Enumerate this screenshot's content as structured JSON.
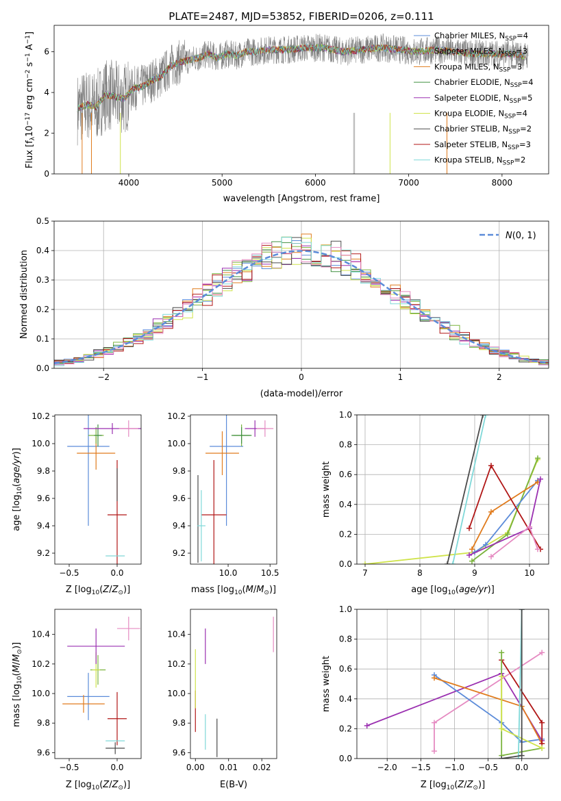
{
  "figure": {
    "title": "PLATE=2487, MJD=53852, FIBERID=0206, z=0.111",
    "palette": {
      "chabrier_miles": "#5b8bd9",
      "salpeter_miles": "#7ab33c",
      "kroupa_miles": "#e07b1c",
      "chabrier_elodie": "#3f8f3f",
      "salpeter_elodie": "#9a2fb0",
      "kroupa_elodie": "#cfe34a",
      "chabrier_stelib": "#4a4a4a",
      "salpeter_stelib": "#b01515",
      "kroupa_stelib": "#7fd8d8",
      "extra": "#e58ac1"
    }
  },
  "chart_data": [
    {
      "id": "spectrum",
      "type": "line",
      "xlabel": "wavelength [Angstrom, rest frame]",
      "ylabel": "Flux [f_λ10^-17 erg cm^-2 s^-1 A^-1]",
      "xlim": [
        3200,
        8500
      ],
      "ylim": [
        0,
        7.3
      ],
      "xticks": [
        4000,
        5000,
        6000,
        7000,
        8000
      ],
      "yticks": [
        0,
        2,
        4,
        6
      ],
      "legend": [
        {
          "label": "Chabrier MILES, N_SSP=4",
          "color": "#5b8bd9"
        },
        {
          "label": "Salpeter MILES, N_SSP=3",
          "color": "#7ab33c"
        },
        {
          "label": "Kroupa MILES, N_SSP=3",
          "color": "#e07b1c"
        },
        {
          "label": "Chabrier ELODIE, N_SSP=4",
          "color": "#3f8f3f"
        },
        {
          "label": "Salpeter ELODIE, N_SSP=5",
          "color": "#9a2fb0"
        },
        {
          "label": "Kroupa ELODIE, N_SSP=4",
          "color": "#cfe34a"
        },
        {
          "label": "Chabrier STELIB, N_SSP=2",
          "color": "#4a4a4a"
        },
        {
          "label": "Salpeter STELIB, N_SSP=3",
          "color": "#b01515"
        },
        {
          "label": "Kroupa STELIB, N_SSP=2",
          "color": "#7fd8d8"
        }
      ],
      "continuum": [
        [
          3450,
          3.2
        ],
        [
          3550,
          3.4
        ],
        [
          3650,
          3.3
        ],
        [
          3750,
          3.9
        ],
        [
          3850,
          3.8
        ],
        [
          3950,
          3.7
        ],
        [
          4050,
          4.2
        ],
        [
          4150,
          4.3
        ],
        [
          4250,
          4.6
        ],
        [
          4350,
          4.8
        ],
        [
          4450,
          5.3
        ],
        [
          4550,
          5.5
        ],
        [
          4650,
          5.6
        ],
        [
          4750,
          5.7
        ],
        [
          4850,
          5.9
        ],
        [
          4950,
          5.7
        ],
        [
          5050,
          5.9
        ],
        [
          5150,
          5.8
        ],
        [
          5250,
          6.0
        ],
        [
          5350,
          6.0
        ],
        [
          5500,
          6.1
        ],
        [
          5700,
          6.1
        ],
        [
          5900,
          6.2
        ],
        [
          6100,
          6.2
        ],
        [
          6300,
          6.0
        ],
        [
          6500,
          6.1
        ],
        [
          6700,
          6.2
        ],
        [
          6900,
          6.1
        ],
        [
          7100,
          6.0
        ],
        [
          7300,
          6.1
        ],
        [
          7500,
          6.0
        ],
        [
          7700,
          5.9
        ],
        [
          7900,
          5.9
        ],
        [
          8100,
          5.9
        ],
        [
          8250,
          5.8
        ]
      ]
    },
    {
      "id": "residuals",
      "type": "line",
      "xlabel": "(data-model)/error",
      "ylabel": "Normed distribution",
      "xlim": [
        -2.5,
        2.5
      ],
      "ylim": [
        0,
        0.5
      ],
      "xticks": [
        -2,
        -1,
        0,
        1,
        2
      ],
      "yticks": [
        0.0,
        0.1,
        0.2,
        0.3,
        0.4,
        0.5
      ],
      "grid": true,
      "legend": [
        {
          "label": "N(0,1)",
          "color": "#5b8bd9",
          "style": "dashed"
        }
      ],
      "gaussian": {
        "mean": 0,
        "sigma": 1
      }
    },
    {
      "id": "age_vs_Z",
      "type": "scatter",
      "xlabel": "Z [log10(Z/Z☉)]",
      "ylabel": "age [log10(age/yr)]",
      "xlim": [
        -0.65,
        0.25
      ],
      "ylim": [
        9.12,
        10.21
      ],
      "xticks": [
        -0.5,
        0.0
      ],
      "yticks": [
        9.2,
        9.4,
        9.6,
        9.8,
        10.0,
        10.2
      ],
      "points": [
        {
          "x": -0.3,
          "y": 9.98,
          "ex": 0.22,
          "ey": 0.58,
          "color": "#5b8bd9"
        },
        {
          "x": -0.22,
          "y": 9.93,
          "ex": 0.2,
          "ey": 0.12,
          "color": "#e07b1c"
        },
        {
          "x": -0.22,
          "y": 10.06,
          "ex": 0.08,
          "ey": 0.06,
          "color": "#7ab33c"
        },
        {
          "x": -0.2,
          "y": 10.06,
          "ex": 0.04,
          "ey": 0.08,
          "color": "#3f8f3f"
        },
        {
          "x": -0.05,
          "y": 10.11,
          "ex": 0.3,
          "ey": 0.04,
          "color": "#9a2fb0"
        },
        {
          "x": 0.12,
          "y": 10.11,
          "ex": 0.1,
          "ey": 0.06,
          "color": "#e58ac1"
        },
        {
          "x": 0.0,
          "y": 9.48,
          "ex": 0.1,
          "ey": 0.4,
          "color": "#b01515"
        },
        {
          "x": 0.0,
          "y": 9.7,
          "ex": 0.0,
          "ey": 0.12,
          "color": "#4a4a4a"
        },
        {
          "x": -0.02,
          "y": 9.18,
          "ex": 0.1,
          "ey": 0.0,
          "color": "#7fd8d8"
        }
      ]
    },
    {
      "id": "age_vs_mass",
      "type": "scatter",
      "xlabel": "mass [log10(M/M☉)]",
      "ylabel": "",
      "xlim": [
        9.55,
        10.58
      ],
      "ylim": [
        9.12,
        10.21
      ],
      "xticks": [
        10.0,
        10.5
      ],
      "yticks": [
        9.2,
        9.4,
        9.6,
        9.8,
        10.0,
        10.2
      ],
      "points": [
        {
          "x": 9.98,
          "y": 9.98,
          "ex": 0.2,
          "ey": 0.58,
          "color": "#5b8bd9"
        },
        {
          "x": 9.93,
          "y": 9.93,
          "ex": 0.2,
          "ey": 0.16,
          "color": "#e07b1c"
        },
        {
          "x": 10.16,
          "y": 10.06,
          "ex": 0.1,
          "ey": 0.08,
          "color": "#7ab33c"
        },
        {
          "x": 10.16,
          "y": 10.06,
          "ex": 0.12,
          "ey": 0.06,
          "color": "#3f8f3f"
        },
        {
          "x": 10.32,
          "y": 10.11,
          "ex": 0.12,
          "ey": 0.06,
          "color": "#9a2fb0"
        },
        {
          "x": 10.44,
          "y": 10.11,
          "ex": 0.1,
          "ey": 0.06,
          "color": "#e58ac1"
        },
        {
          "x": 9.83,
          "y": 9.48,
          "ex": 0.15,
          "ey": 0.4,
          "color": "#b01515"
        },
        {
          "x": 9.64,
          "y": 9.45,
          "ex": 0.0,
          "ey": 0.32,
          "color": "#4a4a4a"
        },
        {
          "x": 9.68,
          "y": 9.4,
          "ex": 0.05,
          "ey": 0.26,
          "color": "#7fd8d8"
        }
      ]
    },
    {
      "id": "massweight_vs_age",
      "type": "line",
      "xlabel": "age [log10(age/yr)]",
      "ylabel": "mass weight",
      "xlim": [
        6.85,
        10.35
      ],
      "ylim": [
        0,
        1
      ],
      "xticks": [
        7,
        8,
        9,
        10
      ],
      "yticks": [
        0.0,
        0.2,
        0.4,
        0.6,
        0.8,
        1.0
      ],
      "grid": true,
      "series": [
        {
          "color": "#cfe34a",
          "x": [
            7.0,
            9.0,
            9.6,
            10.15
          ],
          "y": [
            0.0,
            0.08,
            0.21,
            0.7
          ]
        },
        {
          "color": "#7fd8d8",
          "x": [
            8.6,
            9.2
          ],
          "y": [
            0.0,
            1.0
          ]
        },
        {
          "color": "#4a4a4a",
          "x": [
            8.5,
            9.15
          ],
          "y": [
            0.0,
            1.0
          ]
        },
        {
          "color": "#7ab33c",
          "x": [
            8.95,
            9.6,
            10.15
          ],
          "y": [
            0.02,
            0.2,
            0.71
          ]
        },
        {
          "color": "#5b8bd9",
          "x": [
            9.0,
            9.2,
            10.15
          ],
          "y": [
            0.08,
            0.13,
            0.56
          ]
        },
        {
          "color": "#e07b1c",
          "x": [
            8.95,
            9.3,
            10.15
          ],
          "y": [
            0.1,
            0.35,
            0.55
          ]
        },
        {
          "color": "#9a2fb0",
          "x": [
            8.9,
            10.0,
            10.2
          ],
          "y": [
            0.06,
            0.24,
            0.57
          ]
        },
        {
          "color": "#b01515",
          "x": [
            8.9,
            9.3,
            10.2
          ],
          "y": [
            0.24,
            0.66,
            0.1
          ]
        },
        {
          "color": "#e58ac1",
          "x": [
            9.3,
            10.0,
            10.15
          ],
          "y": [
            0.05,
            0.25,
            0.1
          ]
        }
      ]
    },
    {
      "id": "mass_vs_Z",
      "type": "scatter",
      "xlabel": "Z [log10(Z/Z☉)]",
      "ylabel": "mass [log10(M/M☉)]",
      "xlim": [
        -0.65,
        0.25
      ],
      "ylim": [
        9.56,
        10.57
      ],
      "xticks": [
        -0.5,
        0.0
      ],
      "yticks": [
        9.6,
        9.8,
        10.0,
        10.2,
        10.4
      ],
      "points": [
        {
          "x": -0.3,
          "y": 9.98,
          "ex": 0.22,
          "ey": 0.16,
          "color": "#5b8bd9"
        },
        {
          "x": -0.35,
          "y": 9.93,
          "ex": 0.22,
          "ey": 0.06,
          "color": "#e07b1c"
        },
        {
          "x": -0.2,
          "y": 10.16,
          "ex": 0.08,
          "ey": 0.1,
          "color": "#7ab33c"
        },
        {
          "x": -0.22,
          "y": 10.16,
          "ex": 0.04,
          "ey": 0.12,
          "color": "#cfe34a"
        },
        {
          "x": -0.22,
          "y": 10.32,
          "ex": 0.3,
          "ey": 0.12,
          "color": "#9a2fb0"
        },
        {
          "x": 0.12,
          "y": 10.44,
          "ex": 0.12,
          "ey": 0.08,
          "color": "#e58ac1"
        },
        {
          "x": 0.0,
          "y": 9.83,
          "ex": 0.1,
          "ey": 0.18,
          "color": "#b01515"
        },
        {
          "x": -0.02,
          "y": 9.63,
          "ex": 0.1,
          "ey": 0.04,
          "color": "#4a4a4a"
        },
        {
          "x": -0.02,
          "y": 9.68,
          "ex": 0.1,
          "ey": 0.0,
          "color": "#7fd8d8"
        }
      ]
    },
    {
      "id": "mass_vs_ebv",
      "type": "scatter",
      "xlabel": "E(B-V)",
      "ylabel": "",
      "xlim": [
        -0.0015,
        0.0245
      ],
      "ylim": [
        9.56,
        10.57
      ],
      "xticks": [
        0.0,
        0.01,
        0.02
      ],
      "yticks": [
        9.6,
        9.8,
        10.0,
        10.2,
        10.4
      ],
      "points": [
        {
          "x": 0.0,
          "y": 9.88,
          "ex": 0.0,
          "ey": 0.14,
          "color": "#b01515"
        },
        {
          "x": 0.0,
          "y": 10.1,
          "ex": 0.0,
          "ey": 0.2,
          "color": "#cfe34a"
        },
        {
          "x": 0.003,
          "y": 10.32,
          "ex": 0.0,
          "ey": 0.12,
          "color": "#9a2fb0"
        },
        {
          "x": 0.003,
          "y": 9.74,
          "ex": 0.0,
          "ey": 0.12,
          "color": "#7fd8d8"
        },
        {
          "x": 0.0065,
          "y": 9.7,
          "ex": 0.0,
          "ey": 0.13,
          "color": "#4a4a4a"
        },
        {
          "x": 0.0235,
          "y": 10.4,
          "ex": 0.0,
          "ey": 0.12,
          "color": "#e58ac1"
        }
      ]
    },
    {
      "id": "massweight_vs_Z",
      "type": "line",
      "xlabel": "Z [log10(Z/Z☉)]",
      "ylabel": "mass weight",
      "xlim": [
        -2.45,
        0.4
      ],
      "ylim": [
        0,
        1
      ],
      "xticks": [
        -2.0,
        -1.5,
        -1.0,
        -0.5,
        0.0
      ],
      "yticks": [
        0.0,
        0.2,
        0.4,
        0.6,
        0.8,
        1.0
      ],
      "grid": true,
      "series": [
        {
          "color": "#9a2fb0",
          "x": [
            -2.3,
            -0.3,
            0.3
          ],
          "y": [
            0.22,
            0.57,
            0.12
          ]
        },
        {
          "color": "#e58ac1",
          "x": [
            -1.3,
            -1.3,
            0.3
          ],
          "y": [
            0.05,
            0.24,
            0.71
          ]
        },
        {
          "color": "#5b8bd9",
          "x": [
            -1.3,
            -0.3,
            0.0,
            0.3
          ],
          "y": [
            0.56,
            0.24,
            0.11,
            0.13
          ]
        },
        {
          "color": "#e07b1c",
          "x": [
            -1.3,
            0.0,
            0.3
          ],
          "y": [
            0.54,
            0.35,
            0.1
          ]
        },
        {
          "color": "#b01515",
          "x": [
            -0.3,
            0.3,
            0.3
          ],
          "y": [
            0.66,
            0.24,
            0.1
          ]
        },
        {
          "color": "#7ab33c",
          "x": [
            -0.3,
            -0.3,
            0.3
          ],
          "y": [
            0.71,
            0.02,
            0.07
          ]
        },
        {
          "color": "#cfe34a",
          "x": [
            -0.3,
            -0.3,
            0.3
          ],
          "y": [
            0.55,
            0.2,
            0.07
          ]
        },
        {
          "color": "#7fd8d8",
          "x": [
            0.0,
            -0.05
          ],
          "y": [
            1.0,
            0.0
          ]
        },
        {
          "color": "#4a4a4a",
          "x": [
            -0.3,
            0.0,
            0.0
          ],
          "y": [
            0.0,
            0.02,
            1.0
          ]
        }
      ]
    }
  ]
}
